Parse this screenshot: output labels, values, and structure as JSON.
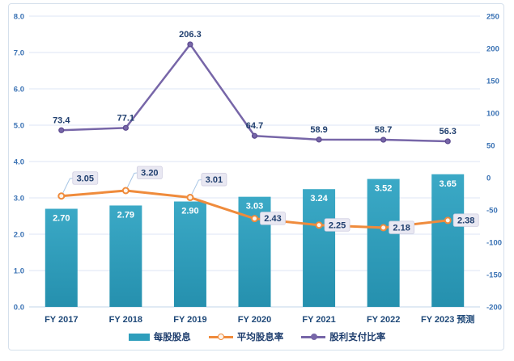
{
  "chart_data": {
    "type": "combo-bar-line",
    "title": "",
    "categories": [
      "FY 2017",
      "FY 2018",
      "FY 2019",
      "FY 2020",
      "FY 2021",
      "FY 2022",
      "FY 2023 预测"
    ],
    "series": [
      {
        "name": "每股股息",
        "type": "bar",
        "axis": "left",
        "values": [
          2.7,
          2.79,
          2.9,
          3.03,
          3.24,
          3.52,
          3.65
        ],
        "labels": [
          "2.70",
          "2.79",
          "2.90",
          "3.03",
          "3.24",
          "3.52",
          "3.65"
        ],
        "color": "#2E9EBC"
      },
      {
        "name": "平均股息率",
        "type": "line",
        "axis": "left",
        "values": [
          3.05,
          3.2,
          3.01,
          2.43,
          2.25,
          2.18,
          2.38
        ],
        "labels": [
          "3.05",
          "3.20",
          "3.01",
          "2.43",
          "2.25",
          "2.18",
          "2.38"
        ],
        "color": "#EF8B3C"
      },
      {
        "name": "股利支付比率",
        "type": "line",
        "axis": "right",
        "values": [
          73.4,
          77.1,
          206.3,
          64.7,
          58.9,
          58.7,
          56.3
        ],
        "labels": [
          "73.4",
          "77.1",
          "206.3",
          "64.7",
          "58.9",
          "58.7",
          "56.3"
        ],
        "color": "#7766A8"
      }
    ],
    "left_axis": {
      "min": 0,
      "max": 8,
      "step": 1,
      "tick_labels": [
        "8.0",
        "7.0",
        "6.0",
        "5.0",
        "4.0",
        "3.0",
        "2.0",
        "1.0",
        "0.0"
      ]
    },
    "right_axis": {
      "min": -200,
      "max": 250,
      "step": 50,
      "tick_labels": [
        "250",
        "200",
        "150",
        "100",
        "50",
        "0",
        "-50",
        "-100",
        "-150",
        "-200"
      ]
    },
    "grid": true,
    "legend_position": "bottom",
    "style": {
      "tick_label_color": "#3A72B4",
      "x_label_color": "#1E4878",
      "data_label_color": "#1F3E6E",
      "bar_label_color": "#FFFFFF",
      "gridline_color": "#DCE6F4",
      "axis_line_color": "#C2D4E9",
      "callout_box_fill": "#E9E8F2",
      "callout_box_border": "#CFCDE0",
      "leader_line_color": "#A8C6E5",
      "bar_gradient_top": "#3BA9C6",
      "bar_gradient_bottom": "#2590AE",
      "orange_marker_fill": "#FDF4EB",
      "purple_marker_fill": "#7766A8",
      "purple_marker_stroke": "#5C4A8F"
    }
  }
}
